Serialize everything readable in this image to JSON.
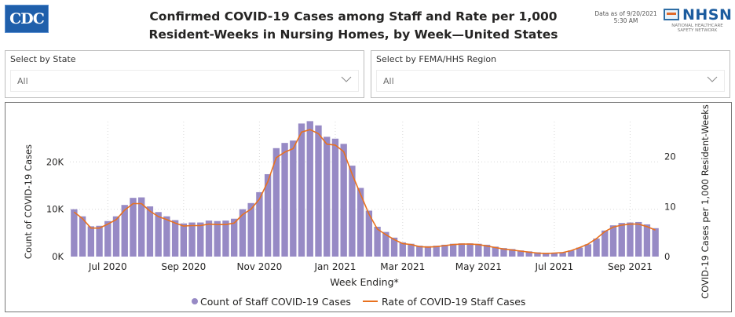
{
  "header": {
    "logo_left": "CDC",
    "title_line1": "Confirmed COVID-19 Cases among Staff and Rate per 1,000",
    "title_line2": "Resident-Weeks in Nursing Homes, by Week—United States",
    "data_as_of_line1": "Data as of 9/20/2021",
    "data_as_of_line2": "5:30 AM",
    "logo_right": "NHSN",
    "logo_right_sub1": "NATIONAL HEALTHCARE",
    "logo_right_sub2": "SAFETY NETWORK"
  },
  "filters": {
    "state": {
      "label": "Select by State",
      "value": "All",
      "icon": "chevron-down-icon"
    },
    "region": {
      "label": "Select by FEMA/HHS Region",
      "value": "All",
      "icon": "chevron-down-icon"
    }
  },
  "colors": {
    "bar": "#978ac5",
    "line": "#e8711f",
    "grid": "#d9d9d9"
  },
  "chart_data": {
    "type": "bar",
    "title": "",
    "xlabel": "Week Ending*",
    "ylabel": "Count of COVID-19 Cases",
    "y2label": "COVID-19 Cases per 1,000 Resident-Weeks",
    "ylim": [
      0,
      28500
    ],
    "y2lim": [
      0,
      27
    ],
    "yticks": [
      "0K",
      "10K",
      "20K"
    ],
    "yticks_values": [
      0,
      10000,
      20000
    ],
    "y2ticks": [
      "0",
      "10",
      "20"
    ],
    "y2ticks_values": [
      0,
      10,
      20
    ],
    "xtick_labels": [
      "Jul 2020",
      "Sep 2020",
      "Nov 2020",
      "Jan 2021",
      "Mar 2021",
      "May 2021",
      "Jul 2021",
      "Sep 2021"
    ],
    "xtick_positions_week_index": [
      4,
      13,
      22,
      31,
      39,
      48,
      57,
      66
    ],
    "grid": true,
    "legend_position": "bottom",
    "series": [
      {
        "name": "Count of Staff COVID-19 Cases",
        "type": "bar",
        "axis": "left",
        "values": [
          10000,
          8500,
          6400,
          6500,
          7500,
          8500,
          10900,
          12400,
          12500,
          10600,
          9400,
          8500,
          7700,
          7000,
          7200,
          7200,
          7600,
          7500,
          7600,
          8000,
          10000,
          11300,
          13600,
          17400,
          22900,
          24000,
          24500,
          28100,
          28600,
          27700,
          25300,
          24900,
          23800,
          19200,
          14500,
          9700,
          6300,
          5200,
          4000,
          3000,
          2700,
          2300,
          2200,
          2300,
          2500,
          2700,
          2800,
          2800,
          2700,
          2500,
          2100,
          1800,
          1600,
          1300,
          1100,
          900,
          800,
          800,
          900,
          1300,
          1900,
          2600,
          3800,
          5500,
          6600,
          7100,
          7200,
          7300,
          6800,
          6000
        ]
      },
      {
        "name": "Rate of COVID-19 Staff Cases",
        "type": "line",
        "axis": "right",
        "values": [
          8.9,
          7.6,
          5.7,
          5.7,
          6.5,
          7.4,
          9.3,
          10.6,
          10.6,
          9.1,
          8.0,
          7.4,
          6.7,
          6.1,
          6.2,
          6.2,
          6.5,
          6.4,
          6.4,
          6.7,
          8.4,
          9.5,
          11.5,
          15.0,
          19.8,
          20.9,
          21.6,
          24.9,
          25.4,
          24.6,
          22.5,
          22.3,
          21.0,
          16.5,
          12.5,
          8.5,
          5.5,
          4.4,
          3.4,
          2.6,
          2.4,
          2.0,
          1.9,
          2.0,
          2.2,
          2.4,
          2.5,
          2.5,
          2.4,
          2.1,
          1.8,
          1.5,
          1.3,
          1.1,
          0.9,
          0.7,
          0.6,
          0.7,
          0.8,
          1.2,
          1.8,
          2.5,
          3.6,
          5.0,
          5.9,
          6.3,
          6.5,
          6.5,
          6.0,
          5.3
        ]
      }
    ]
  }
}
